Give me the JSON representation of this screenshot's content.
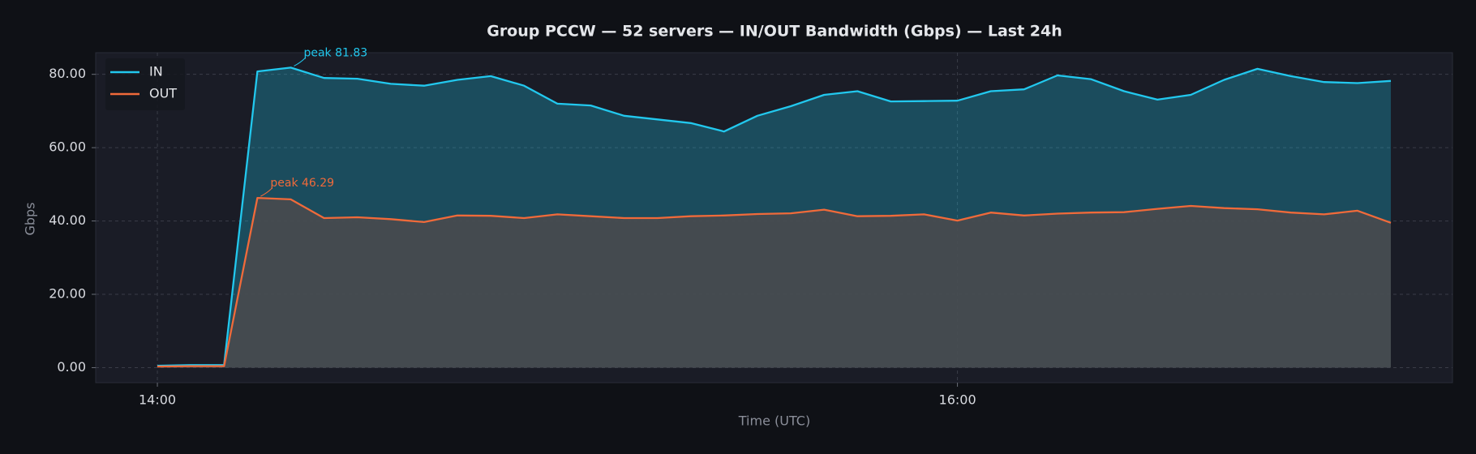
{
  "chart_data": {
    "type": "area",
    "title": "Group PCCW — 52 servers — IN/OUT Bandwidth (Gbps) — Last 24h",
    "x_label": "Time (UTC)",
    "y_label": "Gbps",
    "x": [
      "14:00",
      "14:05",
      "14:10",
      "14:15",
      "14:20",
      "14:25",
      "14:30",
      "14:35",
      "14:40",
      "14:45",
      "14:50",
      "14:55",
      "15:00",
      "15:05",
      "15:10",
      "15:15",
      "15:20",
      "15:25",
      "15:30",
      "15:35",
      "15:40",
      "15:45",
      "15:50",
      "15:55",
      "16:00",
      "16:05",
      "16:10",
      "16:15",
      "16:20",
      "16:25",
      "16:30",
      "16:35",
      "16:40",
      "16:45",
      "16:50",
      "16:55",
      "17:00",
      "17:05"
    ],
    "series": [
      {
        "name": "IN",
        "color": "#22c8ee",
        "values": [
          0.5,
          0.7,
          0.7,
          80.8,
          81.83,
          79.0,
          78.8,
          77.4,
          76.9,
          78.5,
          79.5,
          76.9,
          72.0,
          71.5,
          68.7,
          67.7,
          66.7,
          64.4,
          68.7,
          71.3,
          74.4,
          75.4,
          72.6,
          72.7,
          72.8,
          75.4,
          75.9,
          79.7,
          78.7,
          75.4,
          73.1,
          74.4,
          78.5,
          81.5,
          79.5,
          77.9,
          77.6,
          78.2
        ]
      },
      {
        "name": "OUT",
        "color": "#f06a3a",
        "values": [
          0.3,
          0.4,
          0.4,
          46.29,
          45.9,
          40.8,
          41.0,
          40.5,
          39.7,
          41.5,
          41.4,
          40.8,
          41.8,
          41.3,
          40.8,
          40.8,
          41.3,
          41.5,
          41.9,
          42.1,
          43.1,
          41.3,
          41.4,
          41.8,
          40.1,
          42.3,
          41.5,
          42.0,
          42.3,
          42.4,
          43.3,
          44.1,
          43.5,
          43.2,
          42.3,
          41.8,
          42.8,
          39.5
        ]
      }
    ],
    "annotations": [
      "peak 81.83",
      "peak 46.29"
    ],
    "xticks": [
      "14:00",
      "16:00"
    ],
    "ylim": [
      -4.1,
      85.9
    ],
    "yticks": [
      {
        "value": 0,
        "label": "0.00"
      },
      {
        "value": 20,
        "label": "20.00"
      },
      {
        "value": 40,
        "label": "40.00"
      },
      {
        "value": 60,
        "label": "60.00"
      },
      {
        "value": 80,
        "label": "80.00"
      }
    ],
    "grid": true,
    "legend": "upper-left"
  }
}
